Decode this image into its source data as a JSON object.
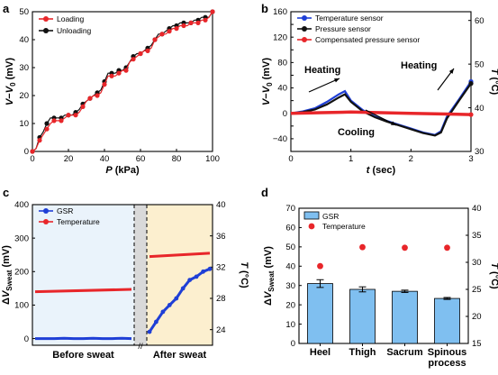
{
  "colors": {
    "red": "#e8262a",
    "black": "#111111",
    "blue": "#1f3fd6",
    "bar": "#7fbff0",
    "bg_c_left": "#eaf3fb",
    "bg_c_right": "#fcefcf",
    "gap": "#d9d9d9"
  },
  "panels": {
    "a": "a",
    "b": "b",
    "c": "c",
    "d": "d"
  },
  "chart_data": [
    {
      "panel": "a",
      "type": "line",
      "xlabel": "P (kPa)",
      "ylabel": "V−V0 (mV)",
      "xlim": [
        0,
        100
      ],
      "ylim": [
        0,
        50
      ],
      "xticks": [
        "0",
        "20",
        "40",
        "60",
        "80",
        "100"
      ],
      "yticks": [
        "0",
        "10",
        "20",
        "30",
        "40",
        "50"
      ],
      "legend": "top-left",
      "series": [
        {
          "name": "Loading",
          "color": "#e8262a",
          "x": [
            0,
            2,
            4,
            6,
            8,
            10,
            12,
            14,
            16,
            18,
            20,
            22,
            24,
            26,
            28,
            30,
            32,
            34,
            36,
            38,
            40,
            42,
            44,
            46,
            48,
            50,
            52,
            54,
            56,
            58,
            60,
            62,
            64,
            66,
            68,
            70,
            72,
            74,
            76,
            78,
            80,
            82,
            84,
            86,
            88,
            90,
            92,
            94,
            96,
            98,
            100
          ],
          "y": [
            0,
            1,
            4,
            6,
            8,
            10,
            11,
            11,
            11,
            12,
            13,
            13,
            13,
            14,
            16,
            18,
            19,
            20,
            20,
            21,
            24,
            27,
            27,
            27,
            28,
            29,
            29,
            32,
            33,
            34,
            35,
            36,
            36,
            37,
            40,
            41,
            42,
            42,
            43,
            44,
            44,
            45,
            45,
            45,
            46,
            46,
            46,
            47,
            47,
            48,
            50
          ]
        },
        {
          "name": "Unloading",
          "color": "#111111",
          "x": [
            0,
            2,
            4,
            6,
            8,
            10,
            12,
            14,
            16,
            18,
            20,
            22,
            24,
            26,
            28,
            30,
            32,
            34,
            36,
            38,
            40,
            42,
            44,
            46,
            48,
            50,
            52,
            54,
            56,
            58,
            60,
            62,
            64,
            66,
            68,
            70,
            72,
            74,
            76,
            78,
            80,
            82,
            84,
            86,
            88,
            90,
            92,
            94,
            96,
            98,
            100
          ],
          "y": [
            0,
            1,
            5,
            7,
            10,
            12,
            12,
            12,
            12,
            13,
            13,
            13,
            14,
            15,
            17,
            18,
            19,
            20,
            21,
            22,
            25,
            28,
            28,
            28,
            29,
            29,
            30,
            32,
            34,
            35,
            35,
            36,
            37,
            38,
            40,
            42,
            42,
            43,
            44,
            45,
            45,
            46,
            46,
            46,
            46,
            47,
            47,
            48,
            48,
            48,
            50
          ]
        }
      ]
    },
    {
      "panel": "b",
      "type": "line",
      "xlabel": "t (sec)",
      "ylabel": "V−V0 (mV)",
      "y2label": "T (°C)",
      "xlim": [
        0,
        3
      ],
      "ylim": [
        -60,
        160
      ],
      "y2lim": [
        30,
        62
      ],
      "xticks": [
        "0",
        "1",
        "2",
        "3"
      ],
      "yticks": [
        "−60",
        "−40",
        "−20",
        "0",
        "20",
        "40",
        "60",
        "80",
        "100",
        "120",
        "140",
        "160"
      ],
      "y2ticks": [
        "30",
        "40",
        "50",
        "60"
      ],
      "legend": "top",
      "annotations": [
        "Heating",
        "Cooling",
        "Heating"
      ],
      "series": [
        {
          "name": "Temperature sensor",
          "color": "#1f3fd6",
          "x": [
            0,
            0.2,
            0.4,
            0.6,
            0.8,
            0.9,
            1.0,
            1.2,
            1.4,
            1.6,
            1.8,
            2.0,
            2.2,
            2.4,
            2.5,
            2.6,
            2.8,
            3.0
          ],
          "y": [
            0,
            3,
            8,
            18,
            30,
            35,
            20,
            5,
            -5,
            -12,
            -18,
            -24,
            -30,
            -34,
            -28,
            -5,
            22,
            50
          ]
        },
        {
          "name": "Pressure sensor",
          "color": "#111111",
          "x": [
            0,
            0.2,
            0.4,
            0.6,
            0.8,
            0.9,
            1.0,
            1.2,
            1.4,
            1.6,
            1.8,
            2.0,
            2.2,
            2.4,
            2.5,
            2.6,
            2.8,
            3.0
          ],
          "y": [
            0,
            2,
            6,
            14,
            25,
            30,
            18,
            3,
            -6,
            -13,
            -19,
            -25,
            -31,
            -35,
            -30,
            -8,
            20,
            47
          ]
        },
        {
          "name": "Compensated pressure sensor",
          "color": "#e8262a",
          "x": [
            0,
            0.5,
            1.0,
            1.5,
            2.0,
            2.5,
            3.0
          ],
          "y": [
            0,
            1,
            2,
            1,
            0,
            -1,
            -2
          ]
        }
      ]
    },
    {
      "panel": "c",
      "type": "line",
      "ylabel": "ΔVSweat (mV)",
      "y2label": "T (°C)",
      "ylim": [
        -20,
        400
      ],
      "y2lim": [
        22,
        40
      ],
      "yticks": [
        "0",
        "100",
        "200",
        "300",
        "400"
      ],
      "y2ticks": [
        "24",
        "28",
        "32",
        "36",
        "40"
      ],
      "region_labels": [
        "Before sweat",
        "After sweat"
      ],
      "legend": "top-left",
      "series": [
        {
          "name": "GSR",
          "color": "#1f3fd6",
          "x": [
            0,
            10,
            20,
            30,
            40,
            50,
            60,
            70,
            80,
            90,
            100,
            110,
            120,
            130,
            140,
            150,
            160,
            170,
            180,
            190,
            200
          ],
          "y": [
            0,
            0,
            0,
            1,
            0,
            0,
            1,
            0,
            0,
            1,
            0,
            20,
            50,
            80,
            100,
            120,
            150,
            175,
            185,
            200,
            208
          ]
        },
        {
          "name": "Temperature",
          "color": "#e8262a",
          "x": [
            0,
            100,
            110,
            200
          ],
          "y": [
            140,
            147,
            245,
            255
          ]
        }
      ]
    },
    {
      "panel": "d",
      "type": "bar",
      "ylabel": "ΔVSweat (mV)",
      "y2label": "T (°C)",
      "ylim": [
        0,
        70
      ],
      "y2lim": [
        15,
        40
      ],
      "yticks": [
        "0",
        "10",
        "20",
        "30",
        "40",
        "50",
        "60",
        "70"
      ],
      "y2ticks": [
        "15",
        "20",
        "25",
        "30",
        "35",
        "40"
      ],
      "categories": [
        "Heel",
        "Thigh",
        "Sacrum",
        "Spinous\nprocess"
      ],
      "legend": "top-left",
      "series": [
        {
          "name": "GSR",
          "values": [
            31,
            28,
            27,
            23.3
          ],
          "errors": [
            2,
            1.3,
            0.6,
            0.5
          ]
        },
        {
          "name": "Temperature",
          "values": [
            29.3,
            32.8,
            32.7,
            32.7
          ]
        }
      ]
    }
  ]
}
